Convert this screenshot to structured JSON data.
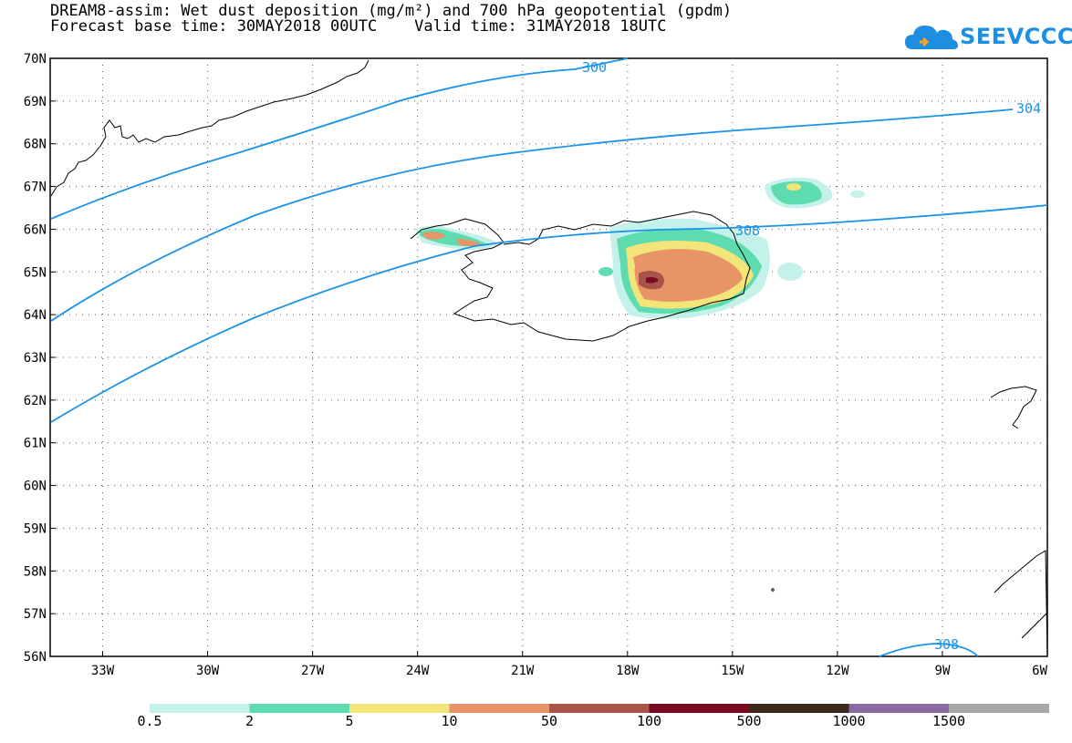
{
  "header": {
    "title_line1": "DREAM8-assim: Wet dust deposition (mg/m²) and 700 hPa geopotential (gpdm)",
    "title_line2": "Forecast base time: 30MAY2018 00UTC    Valid time: 31MAY2018 18UTC"
  },
  "logo": {
    "text": "SEEVCCC",
    "color": "#1e8fe0"
  },
  "map": {
    "lat_labels": [
      "70N",
      "69N",
      "68N",
      "67N",
      "66N",
      "65N",
      "64N",
      "63N",
      "62N",
      "61N",
      "60N",
      "59N",
      "58N",
      "57N",
      "56N"
    ],
    "lon_labels": [
      "33W",
      "30W",
      "27W",
      "24W",
      "21W",
      "18W",
      "15W",
      "12W",
      "9W",
      "6W"
    ],
    "lat_range": [
      56,
      70
    ],
    "lon_range": [
      -34.5,
      -6
    ],
    "grid": "dotted",
    "contour_color": "#1a93e8",
    "contour_labels": [
      "300",
      "304",
      "308",
      "308"
    ]
  },
  "colorbar": {
    "colors": [
      "#c4f2ea",
      "#5edcb0",
      "#f3e57a",
      "#e89466",
      "#a9544a",
      "#780a22",
      "#3b2a1c",
      "#8a6aa0",
      "#a8a8a8"
    ],
    "labels": [
      "0.5",
      "2",
      "5",
      "10",
      "50",
      "100",
      "500",
      "1000",
      "1500"
    ]
  }
}
